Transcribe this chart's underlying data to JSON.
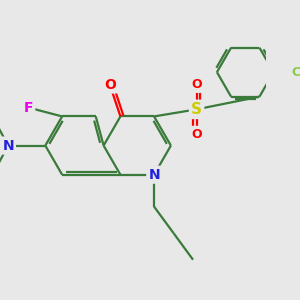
{
  "background_color": "#e8e8e8",
  "bond_color": "#3a7a3a",
  "bond_width": 1.6,
  "atom_colors": {
    "O": "#ff0000",
    "S": "#cccc00",
    "N_ring": "#2222dd",
    "N_amine": "#2222dd",
    "F": "#ee00ee",
    "Cl": "#88cc44"
  },
  "figsize": [
    3.0,
    3.0
  ],
  "dpi": 100
}
